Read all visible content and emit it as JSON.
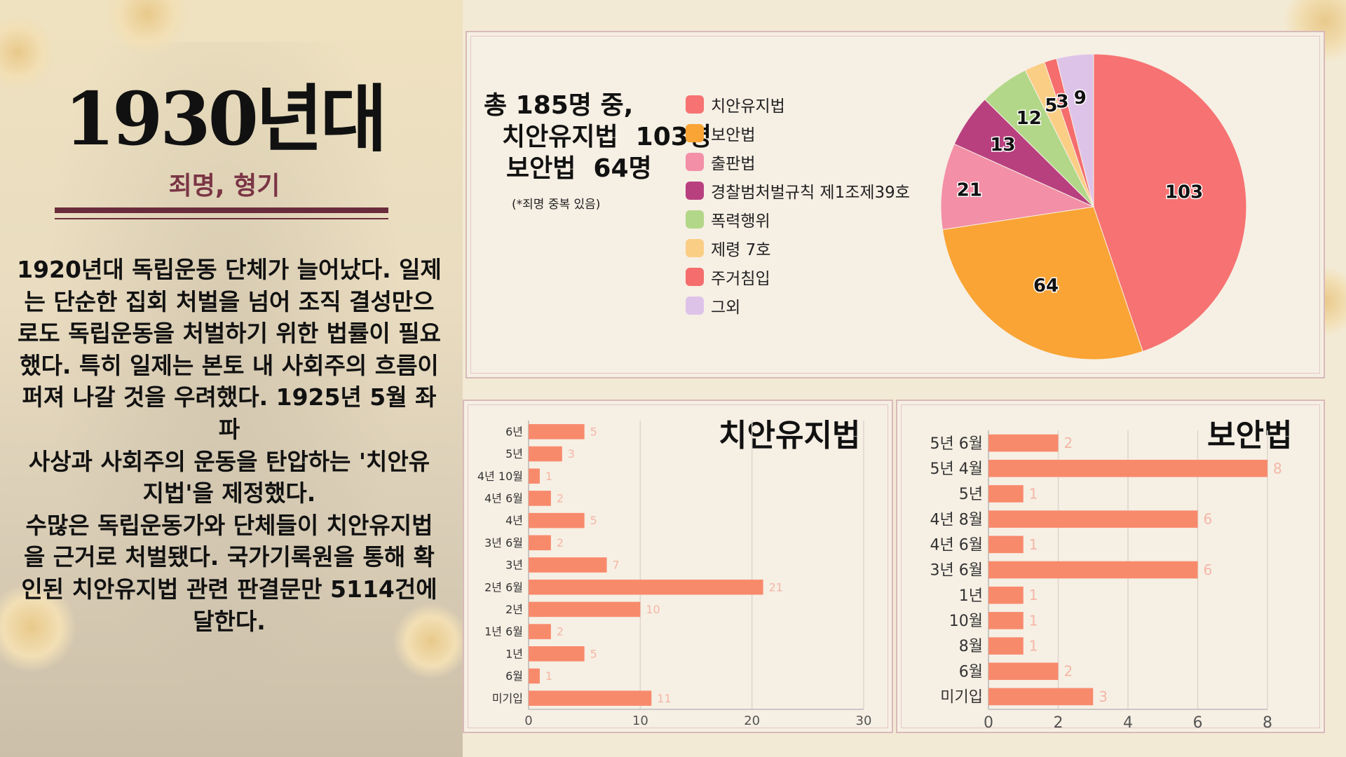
{
  "header": {
    "title": "1930년대",
    "subtitle": "죄명, 형기"
  },
  "body": {
    "paragraph": "1920년대 독립운동 단체가 늘어났다. 일제\n는 단순한 집회 처벌을 넘어 조직 결성만으\n로도 독립운동을 처벌하기 위한 법률이 필요\n했다. 특히 일제는 본토 내 사회주의 흐름이\n퍼져 나갈 것을 우려했다. 1925년 5월 좌파\n사상과 사회주의 운동을 탄압하는 '치안유\n지법'을 제정했다.\n수많은 독립운동가와 단체들이 치안유지법\n을 근거로 처벌됐다. 국가기록원을 통해 확\n인된 치안유지법 관련 판결문만 5114건에\n달한다."
  },
  "summary": {
    "line1": "총 185명 중,",
    "line2": "치안유지법  103명",
    "line3": "보안법  64명",
    "note": "(*죄명 중복 있음)"
  },
  "chart_data": [
    {
      "type": "pie",
      "labels": [
        "치안유지법",
        "보안법",
        "출판법",
        "경찰범처벌규칙 제1조제39호",
        "폭력행위",
        "제령 7호",
        "주거침입",
        "그외"
      ],
      "values": [
        103,
        64,
        21,
        13,
        12,
        5,
        3,
        9
      ],
      "colors": [
        "#f77272",
        "#f9a435",
        "#f38fa6",
        "#b8407f",
        "#b3d789",
        "#fbce86",
        "#f56d6d",
        "#dec3e9"
      ],
      "legend_position": "left"
    },
    {
      "type": "bar",
      "orientation": "horizontal",
      "title": "치안유지법",
      "categories": [
        "6년",
        "5년",
        "4년 10월",
        "4년 6월",
        "4년",
        "3년 6월",
        "3년",
        "2년 6월",
        "2년",
        "1년 6월",
        "1년",
        "6월",
        "미기입"
      ],
      "values": [
        5,
        3,
        1,
        2,
        5,
        2,
        7,
        21,
        10,
        2,
        5,
        1,
        11
      ],
      "xlim": [
        0,
        30
      ],
      "xticks": [
        0,
        10,
        20,
        30
      ],
      "color": "#f88a6c"
    },
    {
      "type": "bar",
      "orientation": "horizontal",
      "title": "보안법",
      "categories": [
        "5년 6월",
        "5년 4월",
        "5년",
        "4년 8월",
        "4년 6월",
        "3년 6월",
        "1년",
        "10월",
        "8월",
        "6월",
        "미기입"
      ],
      "values": [
        2,
        8,
        1,
        6,
        1,
        6,
        1,
        1,
        1,
        2,
        3
      ],
      "xlim": [
        0,
        8
      ],
      "xticks": [
        0,
        2,
        4,
        6,
        8
      ],
      "color": "#f88a6c"
    }
  ]
}
